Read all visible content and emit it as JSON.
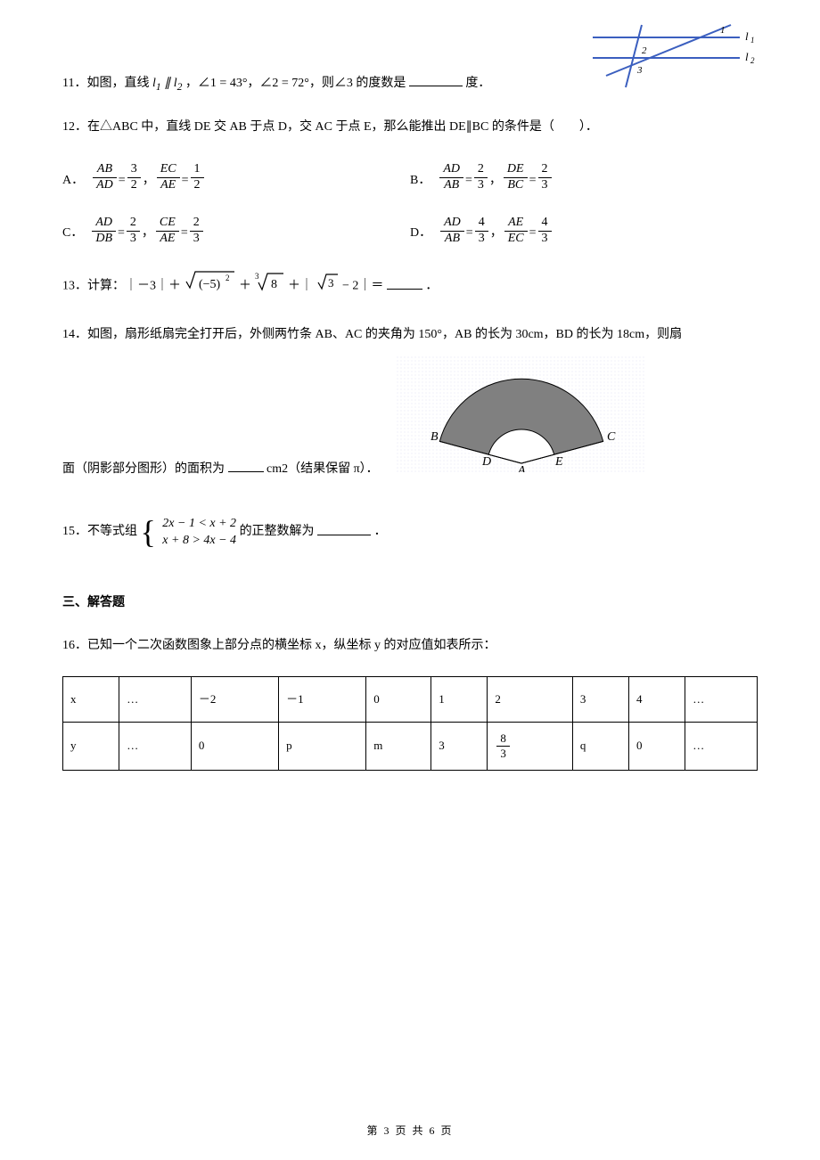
{
  "q11": {
    "prefix": "11．如图，直线",
    "cond1": "l₁ ∥ l₂",
    "cond2": "，∠1 = 43°，∠2 = 72°，则∠3 的度数是",
    "suffix": "度．",
    "fig": {
      "line_color": "#3b5fbf",
      "label_l1": "l₁",
      "label_l2": "l₂",
      "label1": "1",
      "label2": "2",
      "label3": "3"
    }
  },
  "q12": {
    "stem": "12．在△ABC 中，直线 DE 交 AB 于点 D，交 AC 于点 E，那么能推出 DE∥BC 的条件是（　　）．",
    "options": {
      "A": {
        "label": "A．",
        "f1n": "AB",
        "f1d": "AD",
        "v1n": "3",
        "v1d": "2",
        "sep": "，",
        "f2n": "EC",
        "f2d": "AE",
        "v2n": "1",
        "v2d": "2"
      },
      "B": {
        "label": "B．",
        "f1n": "AD",
        "f1d": "AB",
        "v1n": "2",
        "v1d": "3",
        "sep": "，",
        "f2n": "DE",
        "f2d": "BC",
        "v2n": "2",
        "v2d": "3"
      },
      "C": {
        "label": "C．",
        "f1n": "AD",
        "f1d": "DB",
        "v1n": "2",
        "v1d": "3",
        "sep": "，",
        "f2n": "CE",
        "f2d": "AE",
        "v2n": "2",
        "v2d": "3"
      },
      "D": {
        "label": "D．",
        "f1n": "AD",
        "f1d": "AB",
        "v1n": "4",
        "v1d": "3",
        "sep": "，",
        "f2n": "AE",
        "f2d": "EC",
        "v2n": "4",
        "v2d": "3"
      }
    }
  },
  "q13": {
    "prefix": "13．计算：｜－3｜＋",
    "sqrt_expr": "(−5)²",
    "plus1": "＋",
    "cbrt_expr": "8",
    "plus2": "＋｜",
    "sqrt3": "3",
    "tail": " − 2｜＝",
    "suffix": "．"
  },
  "q14": {
    "line1": "14．如图，扇形纸扇完全打开后，外侧两竹条 AB、AC 的夹角为 150°，AB 的长为 30cm，BD 的长为 18cm，则扇",
    "line2_prefix": "面（阴影部分图形）的面积为",
    "line2_suffix": "cm2（结果保留 π）．",
    "fig": {
      "labels": {
        "A": "A",
        "B": "B",
        "C": "C",
        "D": "D",
        "E": "E"
      },
      "fill": "#808080",
      "bg_grid": "#d8ddf0"
    }
  },
  "q15": {
    "prefix": "15．不等式组",
    "sys_line1": "2x − 1 < x + 2",
    "sys_line2": "x + 8 > 4x − 4",
    "mid": "的正整数解为",
    "suffix": "．"
  },
  "section3": "三、解答题",
  "q16": {
    "stem": "16．已知一个二次函数图象上部分点的横坐标 x，纵坐标 y 的对应值如表所示：",
    "table": {
      "rows": [
        [
          "x",
          "…",
          "－2",
          "－1",
          "0",
          "1",
          "2",
          "3",
          "4",
          "…"
        ],
        [
          "y",
          "…",
          "0",
          "p",
          "m",
          "3",
          "8/3",
          "q",
          "0",
          "…"
        ]
      ],
      "frac_cell": {
        "row": 1,
        "col": 6,
        "num": "8",
        "den": "3"
      }
    }
  },
  "footer": {
    "text": "第 3 页 共 6 页"
  }
}
